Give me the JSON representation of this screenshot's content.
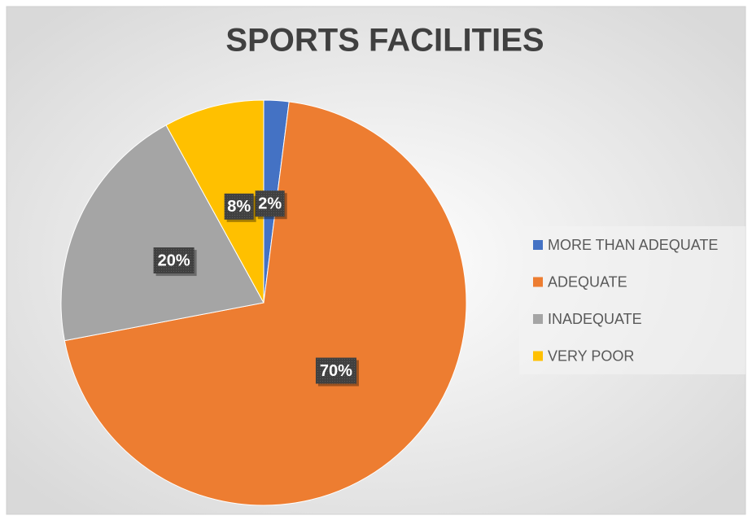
{
  "chart_data": {
    "type": "pie",
    "title": "SPORTS FACILITIES",
    "categories": [
      "MORE THAN ADEQUATE",
      "ADEQUATE",
      "INADEQUATE",
      "VERY POOR"
    ],
    "values": [
      2,
      70,
      20,
      8
    ],
    "value_labels": [
      "2%",
      "70%",
      "20%",
      "8%"
    ],
    "colors": [
      "#4472c4",
      "#ed7d31",
      "#a5a5a5",
      "#ffc000"
    ],
    "legend": "right"
  }
}
